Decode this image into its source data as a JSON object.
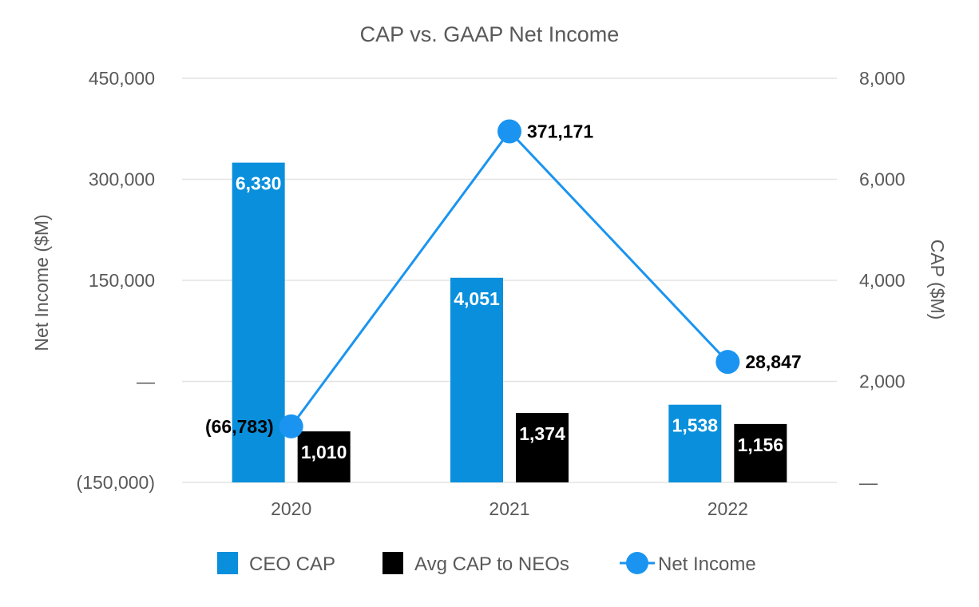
{
  "chart_data": {
    "type": "bar",
    "title": "CAP vs. GAAP Net Income",
    "categories": [
      "2020",
      "2021",
      "2022"
    ],
    "series": [
      {
        "name": "CEO CAP",
        "type": "bar",
        "axis": "right",
        "color": "#0a8fdc",
        "values": [
          6330,
          4051,
          1538
        ],
        "labels": [
          "6,330",
          "4,051",
          "1,538"
        ]
      },
      {
        "name": "Avg CAP to NEOs",
        "type": "bar",
        "axis": "right",
        "color": "#000000",
        "values": [
          1010,
          1374,
          1156
        ],
        "labels": [
          "1,010",
          "1,374",
          "1,156"
        ]
      },
      {
        "name": "Net Income",
        "type": "line",
        "axis": "left",
        "color": "#1a94f0",
        "values": [
          -66783,
          371171,
          28847
        ],
        "labels": [
          "(66,783)",
          "371,171",
          "28,847"
        ]
      }
    ],
    "y_left": {
      "label": "Net Income ($M)",
      "min": -150000,
      "max": 450000,
      "ticks": [
        -150000,
        0,
        150000,
        300000,
        450000
      ],
      "tick_labels": [
        "(150,000)",
        "—",
        "150,000",
        "300,000",
        "450,000"
      ]
    },
    "y_right": {
      "label": "CAP ($M)",
      "min": 0,
      "max": 8000,
      "ticks": [
        0,
        2000,
        4000,
        6000,
        8000
      ],
      "tick_labels": [
        "—",
        "2,000",
        "4,000",
        "6,000",
        "8,000"
      ]
    },
    "grid": true,
    "legend_position": "bottom"
  }
}
